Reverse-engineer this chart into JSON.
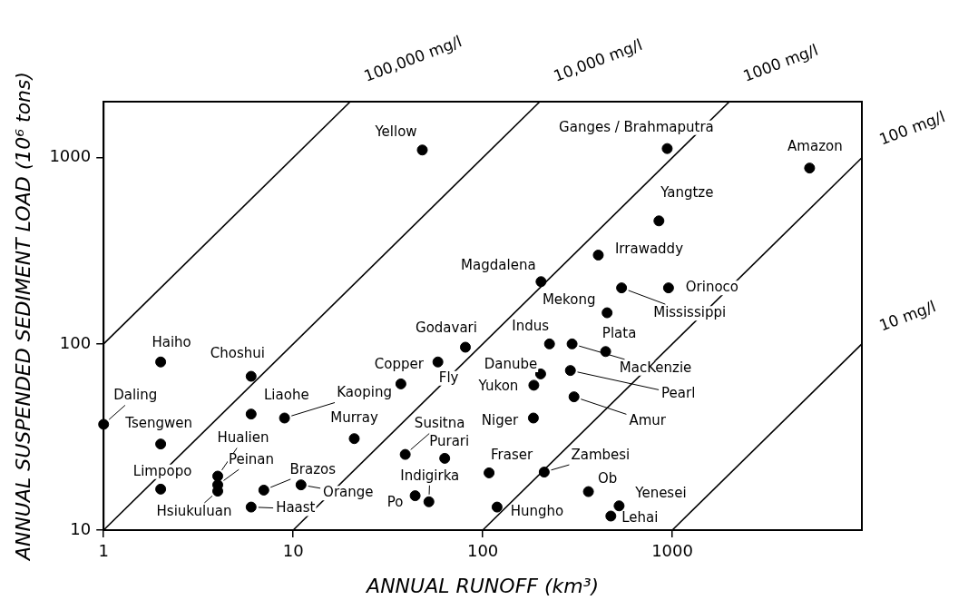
{
  "chart_data": {
    "type": "scatter",
    "xlabel": "ANNUAL RUNOFF (km³)",
    "ylabel": "ANNUAL SUSPENDED SEDIMENT LOAD (10⁶ tons)",
    "log": "xy",
    "xlim": [
      1,
      10000
    ],
    "ylim": [
      10,
      2000
    ],
    "xticks": [
      1,
      10,
      100,
      1000
    ],
    "yticks": [
      10,
      100,
      1000
    ],
    "grid": false,
    "marker": "circle",
    "series": [
      {
        "color": "#000000",
        "x": [
          48,
          2,
          6,
          1,
          2,
          6,
          9,
          21,
          37,
          58,
          81,
          4,
          4,
          4,
          2,
          7,
          11,
          6,
          39,
          63,
          52,
          44,
          108,
          119,
          940,
          5300,
          850,
          407,
          203,
          540,
          955,
          453,
          225,
          296,
          445,
          202,
          186,
          290,
          303,
          185,
          211,
          361,
          524,
          474
        ],
        "values": [
          1100,
          80,
          67,
          37,
          29,
          42,
          40,
          31,
          61,
          80,
          96,
          19.5,
          17.5,
          16.2,
          16.6,
          16.4,
          17.5,
          13.3,
          25.5,
          24.3,
          14.2,
          15.3,
          20.3,
          13.3,
          1120,
          880,
          458,
          300,
          216,
          200,
          200,
          147,
          100,
          100,
          91,
          69,
          60,
          72,
          52,
          40,
          20.5,
          16.1,
          13.5,
          11.9
        ]
      },
      {
        "type": "line",
        "marker": "none",
        "name": "100,000 mg/l",
        "color": "#000000",
        "x": [
          1,
          20
        ],
        "values": [
          100,
          2000
        ]
      },
      {
        "type": "line",
        "marker": "none",
        "name": "10,000 mg/l",
        "color": "#000000",
        "x": [
          1,
          200
        ],
        "values": [
          10,
          2000
        ]
      },
      {
        "type": "line",
        "marker": "none",
        "name": "1000 mg/l",
        "color": "#000000",
        "x": [
          10,
          2000
        ],
        "values": [
          10,
          2000
        ]
      },
      {
        "type": "line",
        "marker": "none",
        "name": "100 mg/l",
        "color": "#000000",
        "x": [
          100,
          10000
        ],
        "values": [
          10,
          1000
        ]
      },
      {
        "type": "line",
        "marker": "none",
        "name": "10 mg/l",
        "color": "#000000",
        "x": [
          1000,
          10000
        ],
        "values": [
          10,
          100
        ]
      }
    ],
    "annotations": [
      {
        "text": "Yellow",
        "x": 48,
        "y": 1100
      },
      {
        "text": "Haiho",
        "x": 2,
        "y": 80
      },
      {
        "text": "Choshui",
        "x": 6,
        "y": 67
      },
      {
        "text": "Daling",
        "x": 1,
        "y": 37
      },
      {
        "text": "Tsengwen",
        "x": 2,
        "y": 29
      },
      {
        "text": "Liaohe",
        "x": 6,
        "y": 42
      },
      {
        "text": "Kaoping",
        "x": 9,
        "y": 40
      },
      {
        "text": "Murray",
        "x": 21,
        "y": 31
      },
      {
        "text": "Copper",
        "x": 37,
        "y": 61
      },
      {
        "text": "Fly",
        "x": 58,
        "y": 80
      },
      {
        "text": "Godavari",
        "x": 81,
        "y": 96
      },
      {
        "text": "Hualien",
        "x": 4,
        "y": 19.5
      },
      {
        "text": "Peinan",
        "x": 4,
        "y": 17.5
      },
      {
        "text": "Hsiukuluan",
        "x": 4,
        "y": 16.2
      },
      {
        "text": "Limpopo",
        "x": 2,
        "y": 16.6
      },
      {
        "text": "Brazos",
        "x": 7,
        "y": 16.4
      },
      {
        "text": "Orange",
        "x": 11,
        "y": 17.5
      },
      {
        "text": "Haast",
        "x": 6,
        "y": 13.3
      },
      {
        "text": "Susitna",
        "x": 39,
        "y": 25.5
      },
      {
        "text": "Purari",
        "x": 63,
        "y": 24.3
      },
      {
        "text": "Indigirka",
        "x": 52,
        "y": 14.2
      },
      {
        "text": "Po",
        "x": 44,
        "y": 15.3
      },
      {
        "text": "Fraser",
        "x": 108,
        "y": 20.3
      },
      {
        "text": "Hungho",
        "x": 119,
        "y": 13.3
      },
      {
        "text": "Ganges / Brahmaputra",
        "x": 940,
        "y": 1120
      },
      {
        "text": "Amazon",
        "x": 5300,
        "y": 880
      },
      {
        "text": "Yangtze",
        "x": 850,
        "y": 458
      },
      {
        "text": "Irrawaddy",
        "x": 407,
        "y": 300
      },
      {
        "text": "Magdalena",
        "x": 203,
        "y": 216
      },
      {
        "text": "Mississippi",
        "x": 540,
        "y": 200
      },
      {
        "text": "Orinoco",
        "x": 955,
        "y": 200
      },
      {
        "text": "Mekong",
        "x": 453,
        "y": 147
      },
      {
        "text": "Indus",
        "x": 225,
        "y": 100
      },
      {
        "text": "MacKenzie",
        "x": 296,
        "y": 100
      },
      {
        "text": "Plata",
        "x": 445,
        "y": 91
      },
      {
        "text": "Danube",
        "x": 202,
        "y": 69
      },
      {
        "text": "Yukon",
        "x": 186,
        "y": 60
      },
      {
        "text": "Pearl",
        "x": 290,
        "y": 72
      },
      {
        "text": "Amur",
        "x": 303,
        "y": 52
      },
      {
        "text": "Niger",
        "x": 185,
        "y": 40
      },
      {
        "text": "Zambesi",
        "x": 211,
        "y": 20.5
      },
      {
        "text": "Ob",
        "x": 361,
        "y": 16.1
      },
      {
        "text": "Yenesei",
        "x": 524,
        "y": 13.5
      },
      {
        "text": "Lehai",
        "x": 474,
        "y": 11.9
      }
    ]
  }
}
